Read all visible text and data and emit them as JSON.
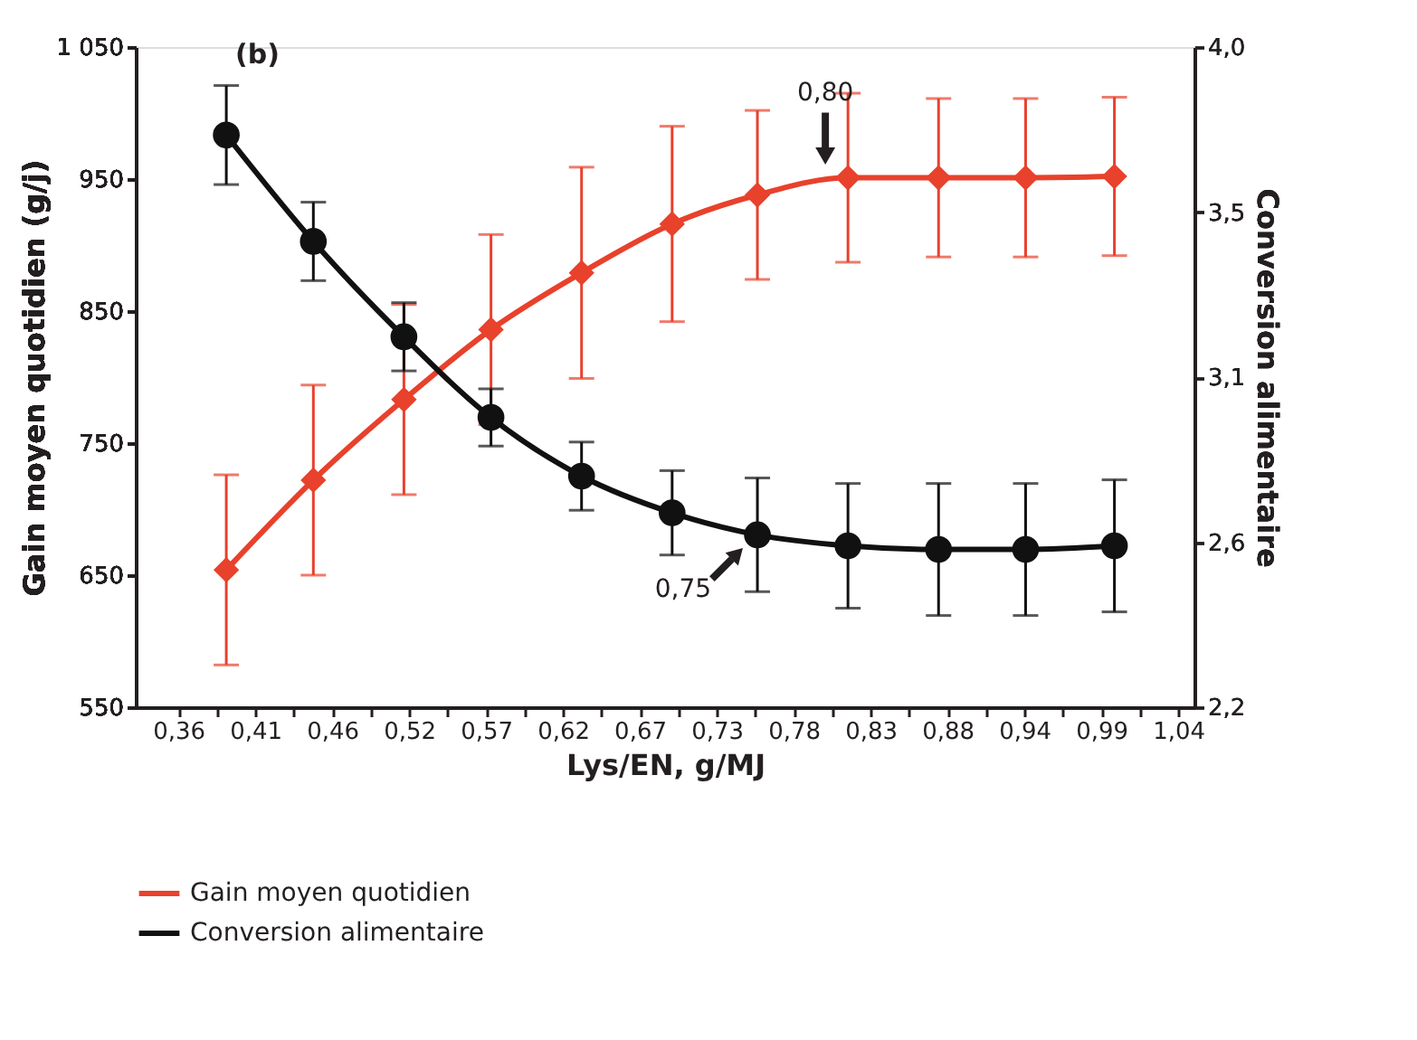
{
  "chart_data": {
    "type": "line",
    "xlabel": "Lys/EN, g/MJ",
    "ylabel": "Gain moyen quotidien (g/j)",
    "y2label": "Conversion alimentaire",
    "x": [
      0.3926,
      0.4518,
      0.5134,
      0.5726,
      0.6342,
      0.6958,
      0.7538,
      0.8154,
      0.877,
      0.9362,
      0.9966
    ],
    "series": [
      {
        "name": "Gain moyen quotidien",
        "color": "#e8412c",
        "marker": "diamond",
        "values": [
          654,
          722,
          783,
          836,
          879,
          916,
          938,
          951,
          951,
          951,
          952
        ],
        "errors": [
          72,
          72,
          72,
          72,
          80,
          74,
          64,
          64,
          60,
          60,
          60
        ]
      },
      {
        "name": "Conversion alimentaire",
        "color": "#111111",
        "marker": "circle",
        "axis": "y2",
        "values": [
          3.76,
          3.47,
          3.21,
          2.99,
          2.83,
          2.73,
          2.67,
          2.64,
          2.63,
          2.63,
          2.64
        ],
        "errors": [
          0.135,
          0.107,
          0.093,
          0.078,
          0.093,
          0.115,
          0.155,
          0.17,
          0.18,
          0.18,
          0.18
        ]
      }
    ],
    "xlim": [
      0.331,
      1.051
    ],
    "xticks": [
      {
        "value": 0.36,
        "label": "0,36"
      },
      {
        "value": 0.4123,
        "label": "0,41"
      },
      {
        "value": 0.4646,
        "label": "0,46"
      },
      {
        "value": 0.5169,
        "label": "0,52"
      },
      {
        "value": 0.5692,
        "label": "0,57"
      },
      {
        "value": 0.6215,
        "label": "0,62"
      },
      {
        "value": 0.6738,
        "label": "0,67"
      },
      {
        "value": 0.7262,
        "label": "0,73"
      },
      {
        "value": 0.7785,
        "label": "0,78"
      },
      {
        "value": 0.8308,
        "label": "0,83"
      },
      {
        "value": 0.8831,
        "label": "0,88"
      },
      {
        "value": 0.9354,
        "label": "0,94"
      },
      {
        "value": 0.9877,
        "label": "0,99"
      },
      {
        "value": 1.04,
        "label": "1,04"
      },
      {
        "value": 0.3862,
        "label": null
      },
      {
        "value": 0.4385,
        "label": null
      },
      {
        "value": 0.4908,
        "label": null
      },
      {
        "value": 0.5431,
        "label": null
      },
      {
        "value": 0.5954,
        "label": null
      },
      {
        "value": 0.6477,
        "label": null
      },
      {
        "value": 0.7,
        "label": null
      },
      {
        "value": 0.7523,
        "label": null
      },
      {
        "value": 0.8046,
        "label": null
      },
      {
        "value": 0.8569,
        "label": null
      },
      {
        "value": 0.9092,
        "label": null
      },
      {
        "value": 0.9615,
        "label": null
      },
      {
        "value": 1.0138,
        "label": null
      }
    ],
    "ylim": [
      550,
      1050
    ],
    "yticks": [
      550,
      650,
      750,
      850,
      950,
      {
        "value": 1050,
        "label": "1 050"
      }
    ],
    "y2lim": [
      2.2,
      4.0
    ],
    "y2ticks": [
      {
        "value": 2.2,
        "label": "2,2"
      },
      {
        "value": 2.65,
        "label": "2,6"
      },
      {
        "value": 3.1,
        "label": "3,1"
      },
      {
        "value": 3.55,
        "label": "3,5"
      },
      {
        "value": 4.0,
        "label": "4,0"
      }
    ],
    "annotations": [
      "(b)",
      {
        "text": "0,80",
        "x": 0.8,
        "y": 951
      },
      {
        "text": "0,75",
        "x": 0.75,
        "y": 680
      }
    ],
    "legend": "bottom"
  }
}
